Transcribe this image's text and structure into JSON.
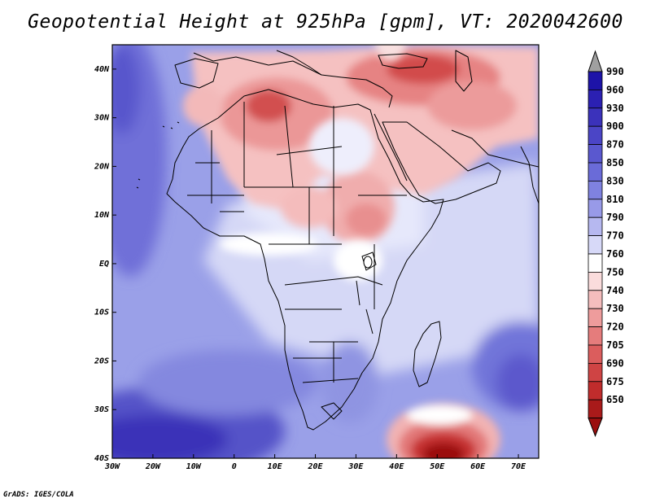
{
  "title": "Geopotential Height at 925hPa [gpm], VT: 2020042600",
  "credit": "GrADS: IGES/COLA",
  "map": {
    "projection": "latlon",
    "lon_range": [
      -30,
      75
    ],
    "lat_range": [
      -40,
      45
    ],
    "x_ticks": [
      {
        "lon": -30,
        "label": "30W"
      },
      {
        "lon": -20,
        "label": "20W"
      },
      {
        "lon": -10,
        "label": "10W"
      },
      {
        "lon": 0,
        "label": "0"
      },
      {
        "lon": 10,
        "label": "10E"
      },
      {
        "lon": 20,
        "label": "20E"
      },
      {
        "lon": 30,
        "label": "30E"
      },
      {
        "lon": 40,
        "label": "40E"
      },
      {
        "lon": 50,
        "label": "50E"
      },
      {
        "lon": 60,
        "label": "60E"
      },
      {
        "lon": 70,
        "label": "70E"
      }
    ],
    "y_ticks": [
      {
        "lat": 40,
        "label": "40N"
      },
      {
        "lat": 30,
        "label": "30N"
      },
      {
        "lat": 20,
        "label": "20N"
      },
      {
        "lat": 10,
        "label": "10N"
      },
      {
        "lat": 0,
        "label": "EQ"
      },
      {
        "lat": -10,
        "label": "10S"
      },
      {
        "lat": -20,
        "label": "20S"
      },
      {
        "lat": -30,
        "label": "30S"
      },
      {
        "lat": -40,
        "label": "40S"
      }
    ],
    "colors": {
      "low_center": "#9b0f0f",
      "lake_color": "#ffffff",
      "coast_color": "#000000"
    }
  },
  "colorbar": {
    "levels": [
      {
        "label": "990",
        "color": "#1d13a8"
      },
      {
        "label": "960",
        "color": "#2b20b2"
      },
      {
        "label": "930",
        "color": "#3b32bb"
      },
      {
        "label": "900",
        "color": "#4b45c6"
      },
      {
        "label": "870",
        "color": "#5a58cf"
      },
      {
        "label": "850",
        "color": "#6a6bd8"
      },
      {
        "label": "830",
        "color": "#7f82e0"
      },
      {
        "label": "810",
        "color": "#989ae8"
      },
      {
        "label": "790",
        "color": "#b6b8f0"
      },
      {
        "label": "770",
        "color": "#d7d9f8"
      },
      {
        "label": "760",
        "color": "#ffffff"
      },
      {
        "label": "750",
        "color": "#fadcdc"
      },
      {
        "label": "740",
        "color": "#f5bdbd"
      },
      {
        "label": "730",
        "color": "#ee9c9c"
      },
      {
        "label": "720",
        "color": "#e57c7c"
      },
      {
        "label": "705",
        "color": "#db5d5d"
      },
      {
        "label": "690",
        "color": "#cf4444"
      },
      {
        "label": "675",
        "color": "#c02c2c"
      },
      {
        "label": "650",
        "color": "#a91a1a"
      }
    ],
    "over_color": "#a0a0a0",
    "under_color": "#9b0f0f"
  }
}
